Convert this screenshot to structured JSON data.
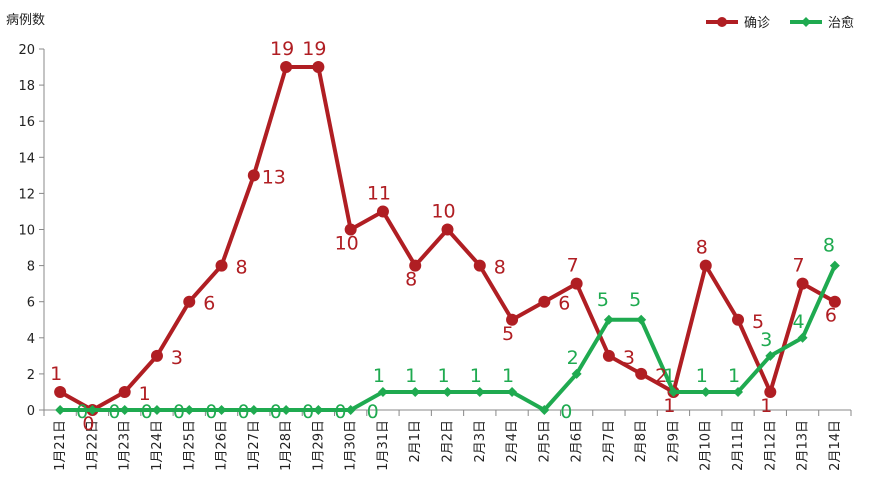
{
  "chart_data": {
    "type": "line",
    "ylabel": "病例数",
    "ylim": [
      0,
      20
    ],
    "yticks": [
      0,
      2,
      4,
      6,
      8,
      10,
      12,
      14,
      16,
      18,
      20
    ],
    "categories": [
      "1月21日",
      "1月22日",
      "1月23日",
      "1月24日",
      "1月25日",
      "1月26日",
      "1月27日",
      "1月28日",
      "1月29日",
      "1月30日",
      "1月31日",
      "2月1日",
      "2月2日",
      "2月3日",
      "2月4日",
      "2月5日",
      "2月6日",
      "2月7日",
      "2月8日",
      "2月9日",
      "2月10日",
      "2月11日",
      "2月12日",
      "2月13日",
      "2月14日"
    ],
    "legend_position": "top-right",
    "grid": false,
    "series": [
      {
        "name": "确诊",
        "color": "#b01e23",
        "marker": "circle",
        "values": [
          1,
          0,
          1,
          3,
          6,
          8,
          13,
          19,
          19,
          10,
          11,
          8,
          10,
          8,
          5,
          6,
          7,
          3,
          2,
          1,
          8,
          5,
          1,
          7,
          6
        ]
      },
      {
        "name": "治愈",
        "color": "#1faa50",
        "marker": "diamond",
        "values": [
          0,
          0,
          0,
          0,
          0,
          0,
          0,
          0,
          0,
          0,
          1,
          1,
          1,
          1,
          1,
          0,
          2,
          5,
          5,
          1,
          1,
          1,
          3,
          4,
          8
        ]
      }
    ]
  }
}
